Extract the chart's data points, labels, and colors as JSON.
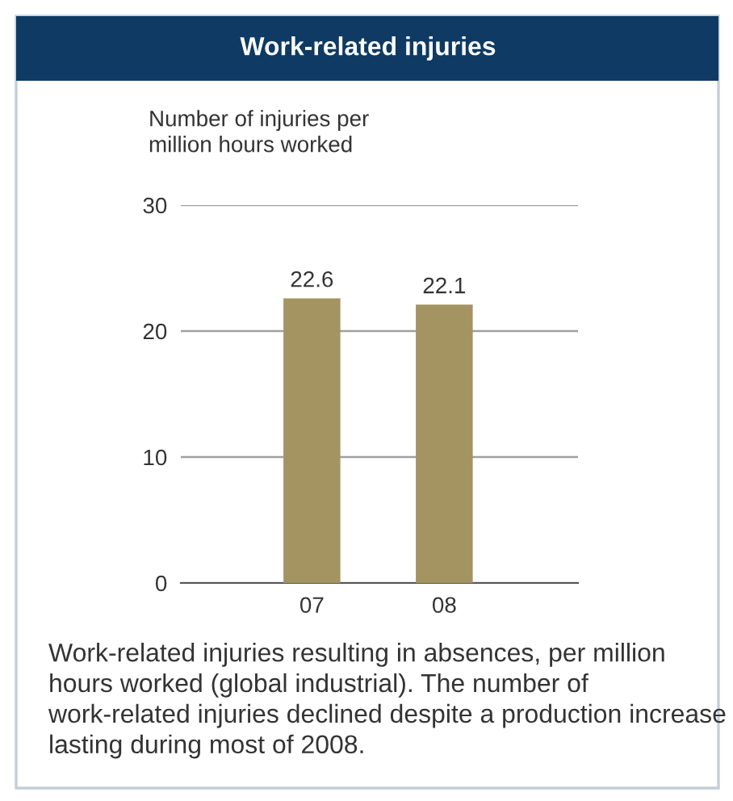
{
  "chart_data": {
    "type": "bar",
    "title": "Work-related injuries",
    "ylabel": "Number of injuries per\nmillion hours worked",
    "categories": [
      "07",
      "08"
    ],
    "values": [
      22.6,
      22.1
    ],
    "color": "#a39461",
    "ylim": [
      0,
      30
    ],
    "yticks": [
      0,
      10,
      20,
      30
    ],
    "grid": "y",
    "data_labels": true,
    "annotations": [
      "Work-related injuries resulting in absences, per million hours worked (global industrial). The number of work-related injuries declined despite a production increase lasting during most of 2008."
    ]
  }
}
